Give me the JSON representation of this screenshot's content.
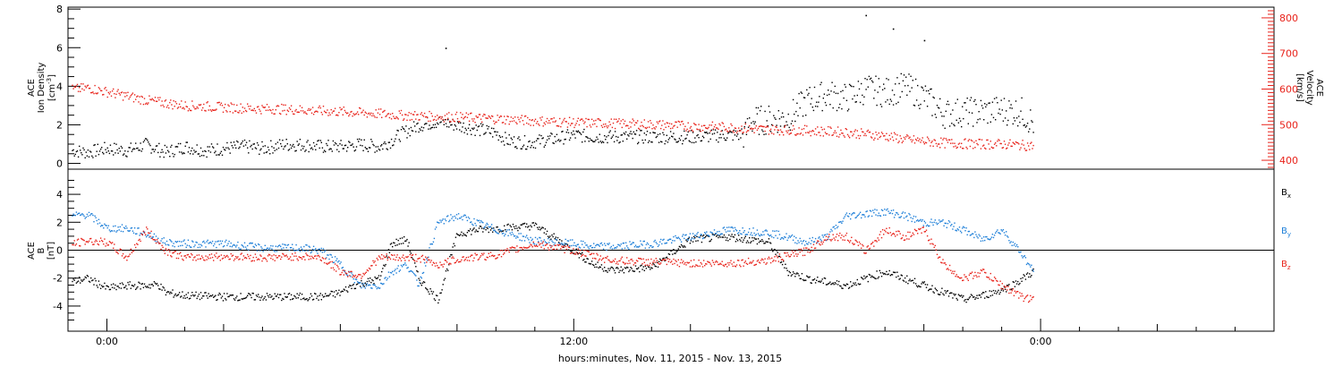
{
  "colors": {
    "black": "#000000",
    "red": "#e8231b",
    "blue": "#1e7fd8"
  },
  "xlabel": "hours:minutes, Nov. 11, 2015 - Nov. 13, 2015",
  "x_ticks": [
    {
      "label": "0:00",
      "hours": 0
    },
    {
      "label": "12:00",
      "hours": 12
    },
    {
      "label": "0:00",
      "hours": 24
    }
  ],
  "chart_data": [
    {
      "type": "scatter",
      "panel": "top",
      "ylabel_left": [
        "ACE",
        "Ion Density",
        "[cm",
        "-3",
        "]"
      ],
      "ylabel_right": [
        "ACE",
        "Velocity",
        "[km/s]"
      ],
      "xlim_hours": [
        -1,
        30
      ],
      "ylim_left": [
        -0.3,
        8.1
      ],
      "ylim_right": [
        375,
        830
      ],
      "left_ticks": [
        0,
        2,
        4,
        6,
        8
      ],
      "right_ticks": [
        400,
        500,
        600,
        700,
        800
      ],
      "series": [
        {
          "axis": "left",
          "color": "black",
          "points": [
            [
              -0.9,
              0.7
            ],
            [
              -0.5,
              0.6
            ],
            [
              0,
              0.8
            ],
            [
              0.5,
              0.7
            ],
            [
              1,
              1.0
            ],
            [
              1.5,
              0.6
            ],
            [
              2,
              0.9
            ],
            [
              2.5,
              0.7
            ],
            [
              3,
              0.8
            ],
            [
              3.5,
              0.9
            ],
            [
              4,
              0.8
            ],
            [
              4.5,
              1.0
            ],
            [
              5,
              1.0
            ],
            [
              5.5,
              0.9
            ],
            [
              6,
              0.9
            ],
            [
              6.5,
              1.0
            ],
            [
              7,
              0.9
            ],
            [
              7.3,
              1.2
            ],
            [
              7.5,
              1.5
            ],
            [
              8,
              2.0
            ],
            [
              8.5,
              2.2
            ],
            [
              9,
              2.0
            ],
            [
              9.5,
              1.8
            ],
            [
              10,
              1.6
            ],
            [
              10.3,
              1.2
            ],
            [
              10.8,
              1.1
            ],
            [
              11.5,
              1.3
            ],
            [
              12,
              1.5
            ],
            [
              12.5,
              1.4
            ],
            [
              13,
              1.4
            ],
            [
              14,
              1.4
            ],
            [
              15,
              1.4
            ],
            [
              16,
              1.5
            ],
            [
              16.4,
              1.5
            ],
            [
              16.5,
              2.2
            ],
            [
              17,
              2.3
            ],
            [
              17.5,
              2.4
            ],
            [
              18,
              3.3
            ],
            [
              18.5,
              3.6
            ],
            [
              19,
              3.4
            ],
            [
              19.5,
              3.9
            ],
            [
              20,
              3.7
            ],
            [
              20.5,
              4.0
            ],
            [
              21,
              3.5
            ],
            [
              21.5,
              2.6
            ],
            [
              22,
              2.7
            ],
            [
              22.5,
              2.7
            ],
            [
              23,
              2.8
            ],
            [
              23.5,
              2.7
            ],
            [
              23.8,
              2.1
            ]
          ]
        },
        {
          "axis": "right",
          "color": "red",
          "points": [
            [
              -0.9,
              600
            ],
            [
              -0.5,
              605
            ],
            [
              0,
              593
            ],
            [
              0.5,
              582
            ],
            [
              1,
              570
            ],
            [
              1.5,
              562
            ],
            [
              2,
              555
            ],
            [
              2.5,
              553
            ],
            [
              3,
              550
            ],
            [
              3.5,
              548
            ],
            [
              4,
              546
            ],
            [
              4.5,
              545
            ],
            [
              5,
              543
            ],
            [
              5.5,
              540
            ],
            [
              6,
              538
            ],
            [
              6.5,
              535
            ],
            [
              7,
              532
            ],
            [
              7.5,
              528
            ],
            [
              8,
              526
            ],
            [
              8.5,
              524
            ],
            [
              9,
              523
            ],
            [
              9.5,
              520
            ],
            [
              10,
              518
            ],
            [
              10.5,
              515
            ],
            [
              11,
              512
            ],
            [
              11.5,
              510
            ],
            [
              12,
              507
            ],
            [
              13,
              505
            ],
            [
              14,
              502
            ],
            [
              15,
              497
            ],
            [
              16,
              494
            ],
            [
              16.5,
              490
            ],
            [
              17,
              488
            ],
            [
              18,
              485
            ],
            [
              19,
              480
            ],
            [
              20,
              470
            ],
            [
              20.5,
              460
            ],
            [
              21,
              455
            ],
            [
              21.5,
              450
            ],
            [
              22,
              448
            ],
            [
              22.5,
              447
            ],
            [
              23,
              447
            ],
            [
              23.5,
              444
            ],
            [
              23.8,
              442
            ]
          ]
        }
      ],
      "outliers": [
        [
          8.7,
          6.0
        ],
        [
          19.5,
          7.7
        ],
        [
          20.2,
          7.0
        ],
        [
          21.0,
          6.4
        ]
      ]
    },
    {
      "type": "scatter",
      "panel": "bottom",
      "ylabel": [
        "ACE",
        "B",
        "[nT]"
      ],
      "xlim_hours": [
        -1,
        30
      ],
      "ylim": [
        -5.8,
        5.8
      ],
      "ticks": [
        -4,
        -2,
        0,
        2,
        4
      ],
      "series": [
        {
          "name": "B",
          "sub": "x",
          "color": "black",
          "points": [
            [
              -0.9,
              -2.2
            ],
            [
              -0.5,
              -2.0
            ],
            [
              0,
              -2.7
            ],
            [
              0.5,
              -2.5
            ],
            [
              1,
              -2.5
            ],
            [
              1.3,
              -2.4
            ],
            [
              1.5,
              -3.0
            ],
            [
              2,
              -3.2
            ],
            [
              3,
              -3.3
            ],
            [
              4,
              -3.3
            ],
            [
              5,
              -3.3
            ],
            [
              5.5,
              -3.3
            ],
            [
              6,
              -3.0
            ],
            [
              6.3,
              -2.5
            ],
            [
              7,
              -2.0
            ],
            [
              7.3,
              0.5
            ],
            [
              7.7,
              0.8
            ],
            [
              8,
              -2.0
            ],
            [
              8.5,
              -3.5
            ],
            [
              9,
              1.2
            ],
            [
              9.5,
              1.5
            ],
            [
              10,
              1.6
            ],
            [
              11,
              1.8
            ],
            [
              12,
              0.0
            ],
            [
              12.5,
              -1.0
            ],
            [
              13,
              -1.4
            ],
            [
              14,
              -1.2
            ],
            [
              15,
              0.8
            ],
            [
              16,
              1.0
            ],
            [
              17,
              0.6
            ],
            [
              17.5,
              -1.5
            ],
            [
              18,
              -2.0
            ],
            [
              19,
              -2.5
            ],
            [
              20,
              -1.5
            ],
            [
              21,
              -2.5
            ],
            [
              21.5,
              -3.0
            ],
            [
              22,
              -3.5
            ],
            [
              22.5,
              -3.2
            ],
            [
              23,
              -2.8
            ],
            [
              23.3,
              -2.4
            ],
            [
              23.8,
              -1.5
            ]
          ]
        },
        {
          "name": "B",
          "sub": "y",
          "color": "blue",
          "points": [
            [
              -0.9,
              2.5
            ],
            [
              -0.5,
              2.6
            ],
            [
              0,
              1.6
            ],
            [
              0.5,
              1.6
            ],
            [
              1,
              1.2
            ],
            [
              1.5,
              0.6
            ],
            [
              2,
              0.5
            ],
            [
              3,
              0.5
            ],
            [
              4,
              0.2
            ],
            [
              5,
              0.2
            ],
            [
              5.5,
              0.0
            ],
            [
              6,
              -1.0
            ],
            [
              6.5,
              -2.5
            ],
            [
              7,
              -2.5
            ],
            [
              7.3,
              -1.5
            ],
            [
              7.7,
              -1.0
            ],
            [
              8,
              -2.4
            ],
            [
              8.5,
              2.0
            ],
            [
              9,
              2.5
            ],
            [
              10,
              1.5
            ],
            [
              11,
              0.7
            ],
            [
              12,
              0.5
            ],
            [
              12.5,
              0.3
            ],
            [
              13,
              0.3
            ],
            [
              14,
              0.5
            ],
            [
              15,
              1.0
            ],
            [
              16,
              1.5
            ],
            [
              17,
              1.3
            ],
            [
              18,
              0.6
            ],
            [
              18.5,
              1.0
            ],
            [
              19,
              2.5
            ],
            [
              20,
              2.8
            ],
            [
              20.5,
              2.5
            ],
            [
              21,
              2.0
            ],
            [
              21.5,
              2.0
            ],
            [
              22,
              1.5
            ],
            [
              22.5,
              0.8
            ],
            [
              23,
              1.5
            ],
            [
              23.5,
              -0.2
            ],
            [
              23.8,
              -1.5
            ]
          ]
        },
        {
          "name": "B",
          "sub": "z",
          "color": "red",
          "points": [
            [
              -0.9,
              0.5
            ],
            [
              -0.5,
              0.7
            ],
            [
              0,
              0.6
            ],
            [
              0.5,
              -0.5
            ],
            [
              1,
              1.5
            ],
            [
              1.5,
              0.0
            ],
            [
              2,
              -0.5
            ],
            [
              3,
              -0.4
            ],
            [
              4,
              -0.5
            ],
            [
              5,
              -0.4
            ],
            [
              5.5,
              -0.5
            ],
            [
              6,
              -1.5
            ],
            [
              6.5,
              -1.8
            ],
            [
              7,
              -0.5
            ],
            [
              7.5,
              -0.5
            ],
            [
              8,
              -0.5
            ],
            [
              8.5,
              -1.0
            ],
            [
              9,
              -0.6
            ],
            [
              10,
              -0.3
            ],
            [
              11,
              0.5
            ],
            [
              12,
              0.0
            ],
            [
              12.5,
              -0.4
            ],
            [
              13,
              -0.7
            ],
            [
              14,
              -0.8
            ],
            [
              15,
              -0.9
            ],
            [
              16,
              -0.9
            ],
            [
              17,
              -0.7
            ],
            [
              18,
              0.0
            ],
            [
              18.5,
              1.0
            ],
            [
              19,
              1.0
            ],
            [
              19.5,
              0.0
            ],
            [
              20,
              1.5
            ],
            [
              20.5,
              1.0
            ],
            [
              21,
              1.5
            ],
            [
              21.5,
              -1.0
            ],
            [
              22,
              -2.0
            ],
            [
              22.5,
              -1.5
            ],
            [
              23,
              -2.5
            ],
            [
              23.5,
              -3.3
            ],
            [
              23.8,
              -3.5
            ]
          ]
        }
      ]
    }
  ]
}
